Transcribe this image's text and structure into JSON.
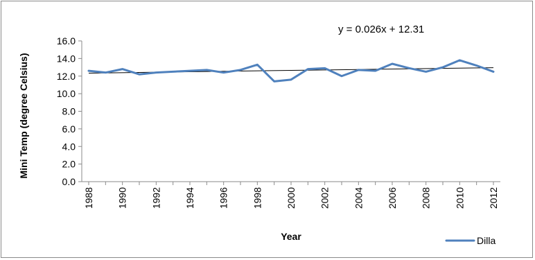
{
  "chart_data": {
    "type": "line",
    "title": "",
    "xlabel": "Year",
    "ylabel": "Mini Temp (degree Celsius)",
    "ylim": [
      0,
      16
    ],
    "y_ticks": [
      "0.0",
      "2.0",
      "4.0",
      "6.0",
      "8.0",
      "10.0",
      "12.0",
      "14.0",
      "16.0"
    ],
    "x_tick_labels": [
      "1988",
      "1990",
      "1992",
      "1994",
      "1996",
      "1998",
      "2000",
      "2002",
      "2004",
      "2006",
      "2008",
      "2010",
      "2012"
    ],
    "x": [
      1988,
      1989,
      1990,
      1991,
      1992,
      1993,
      1994,
      1995,
      1996,
      1997,
      1998,
      1999,
      2000,
      2001,
      2002,
      2003,
      2004,
      2005,
      2006,
      2007,
      2008,
      2009,
      2010,
      2011,
      2012
    ],
    "series": [
      {
        "name": "Dilla",
        "color": "#4f81bd",
        "values": [
          12.6,
          12.4,
          12.8,
          12.2,
          12.4,
          12.5,
          12.6,
          12.7,
          12.4,
          12.7,
          13.3,
          11.4,
          11.6,
          12.8,
          12.9,
          12.0,
          12.7,
          12.6,
          13.4,
          12.9,
          12.5,
          13.0,
          13.8,
          13.2,
          12.5
        ]
      }
    ],
    "trendline": {
      "equation": "y = 0.026x + 12.31",
      "slope": 0.026,
      "intercept": 12.31,
      "color": "#000000"
    },
    "grid": false,
    "legend_position": "bottom-right"
  }
}
